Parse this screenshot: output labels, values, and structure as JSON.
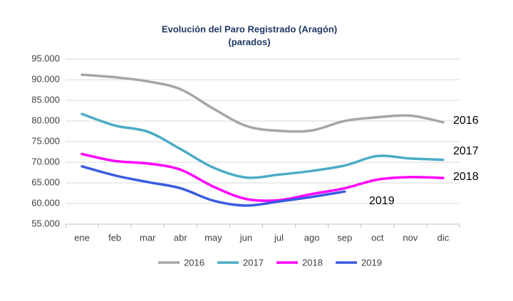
{
  "chart_data": {
    "type": "line",
    "title": "Evolución del Paro Registrado (Aragón)",
    "subtitle": "(parados)",
    "categories": [
      "ene",
      "feb",
      "mar",
      "abr",
      "may",
      "jun",
      "jul",
      "ago",
      "sep",
      "oct",
      "nov",
      "dic"
    ],
    "series": [
      {
        "name": "2016",
        "color": "#a6a6a6",
        "values": [
          91200,
          90600,
          89600,
          87700,
          83000,
          78800,
          77600,
          77700,
          80000,
          80900,
          81300,
          79700
        ]
      },
      {
        "name": "2017",
        "color": "#4bacc6",
        "values": [
          81700,
          78900,
          77400,
          73200,
          68700,
          66300,
          67000,
          67900,
          69200,
          71500,
          70900,
          70600
        ]
      },
      {
        "name": "2018",
        "color": "#ff00ff",
        "values": [
          72000,
          70300,
          69700,
          68200,
          64100,
          61100,
          60800,
          62300,
          63700,
          65800,
          66400,
          66200
        ]
      },
      {
        "name": "2019",
        "color": "#3a5be0",
        "values": [
          69000,
          66800,
          65200,
          63700,
          60700,
          59500,
          60500,
          61600,
          62900,
          null,
          null,
          null
        ]
      }
    ],
    "ylim": [
      55000,
      95000
    ],
    "yticks": [
      {
        "value": 55000,
        "label": "55.000"
      },
      {
        "value": 60000,
        "label": "60.000"
      },
      {
        "value": 65000,
        "label": "65.000"
      },
      {
        "value": 70000,
        "label": "70.000"
      },
      {
        "value": 75000,
        "label": "75.000"
      },
      {
        "value": 80000,
        "label": "80.000"
      },
      {
        "value": 85000,
        "label": "85.000"
      },
      {
        "value": 90000,
        "label": "90.000"
      },
      {
        "value": 95000,
        "label": "95.000"
      }
    ],
    "grid": true,
    "legend": "bottom"
  }
}
